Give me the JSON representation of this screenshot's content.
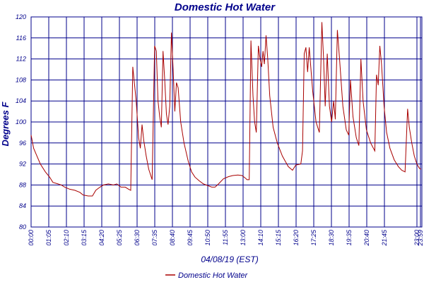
{
  "chart_data": {
    "type": "line",
    "title": "Domestic Hot Water",
    "xlabel": "04/08/19 (EST)",
    "ylabel": "Degrees F",
    "ylim": [
      80,
      120
    ],
    "yticks": [
      "80",
      "84",
      "88",
      "92",
      "96",
      "100",
      "104",
      "108",
      "112",
      "116",
      "120"
    ],
    "xticks": [
      "00:00",
      "01:05",
      "02:10",
      "03:15",
      "04:20",
      "05:25",
      "06:30",
      "07:35",
      "08:40",
      "09:45",
      "10:50",
      "11:55",
      "13:00",
      "14:10",
      "15:15",
      "16:20",
      "17:25",
      "18:30",
      "19:35",
      "20:40",
      "21:45",
      "23:00",
      "23:59"
    ],
    "grid": true,
    "legend_position": "bottom-center",
    "colors": {
      "series": "#A80000",
      "axis_text": "#00008B",
      "grid": "#00008B"
    },
    "series": [
      {
        "name": "Domestic Hot Water",
        "points": [
          [
            0.0,
            97.5
          ],
          [
            0.15,
            95
          ],
          [
            0.35,
            93.5
          ],
          [
            0.55,
            92
          ],
          [
            0.85,
            90.5
          ],
          [
            1.1,
            89.5
          ],
          [
            1.3,
            88.5
          ],
          [
            1.6,
            88.2
          ],
          [
            1.8,
            88.0
          ],
          [
            2.0,
            87.6
          ],
          [
            2.3,
            87.2
          ],
          [
            2.6,
            87.0
          ],
          [
            2.9,
            86.6
          ],
          [
            3.1,
            86.1
          ],
          [
            3.4,
            85.9
          ],
          [
            3.65,
            85.9
          ],
          [
            3.85,
            87.0
          ],
          [
            4.1,
            87.6
          ],
          [
            4.3,
            88.0
          ],
          [
            4.6,
            88.2
          ],
          [
            4.9,
            88.0
          ],
          [
            5.1,
            88.2
          ],
          [
            5.35,
            87.6
          ],
          [
            5.6,
            87.6
          ],
          [
            5.8,
            87.2
          ],
          [
            5.93,
            87.0
          ],
          [
            6.05,
            110.5
          ],
          [
            6.25,
            104
          ],
          [
            6.4,
            97
          ],
          [
            6.5,
            95
          ],
          [
            6.6,
            99.5
          ],
          [
            6.7,
            96.5
          ],
          [
            6.85,
            93.5
          ],
          [
            7.0,
            91
          ],
          [
            7.2,
            89
          ],
          [
            7.35,
            114.5
          ],
          [
            7.45,
            113.5
          ],
          [
            7.55,
            104
          ],
          [
            7.65,
            101
          ],
          [
            7.75,
            99
          ],
          [
            7.85,
            113.5
          ],
          [
            7.95,
            108
          ],
          [
            8.05,
            101.5
          ],
          [
            8.15,
            99.5
          ],
          [
            8.25,
            103
          ],
          [
            8.35,
            117
          ],
          [
            8.45,
            110
          ],
          [
            8.55,
            102
          ],
          [
            8.65,
            107.5
          ],
          [
            8.75,
            106.5
          ],
          [
            8.9,
            100
          ],
          [
            9.1,
            96
          ],
          [
            9.35,
            92.5
          ],
          [
            9.55,
            90.5
          ],
          [
            9.75,
            89.5
          ],
          [
            10.0,
            88.8
          ],
          [
            10.25,
            88.2
          ],
          [
            10.5,
            87.9
          ],
          [
            10.75,
            87.6
          ],
          [
            10.95,
            87.6
          ],
          [
            11.15,
            88.2
          ],
          [
            11.45,
            89.2
          ],
          [
            11.75,
            89.6
          ],
          [
            12.0,
            89.8
          ],
          [
            12.3,
            89.9
          ],
          [
            12.55,
            89.8
          ],
          [
            12.75,
            89.3
          ],
          [
            12.85,
            89.0
          ],
          [
            12.98,
            89.0
          ],
          [
            13.08,
            115.5
          ],
          [
            13.2,
            105
          ],
          [
            13.3,
            100
          ],
          [
            13.4,
            98
          ],
          [
            13.52,
            114.5
          ],
          [
            13.62,
            112
          ],
          [
            13.72,
            110.5
          ],
          [
            13.8,
            113.5
          ],
          [
            13.88,
            111
          ],
          [
            13.98,
            116.5
          ],
          [
            14.08,
            112
          ],
          [
            14.2,
            105
          ],
          [
            14.4,
            99
          ],
          [
            14.65,
            96
          ],
          [
            14.95,
            93.5
          ],
          [
            15.3,
            91.5
          ],
          [
            15.55,
            90.8
          ],
          [
            15.75,
            91.8
          ],
          [
            16.05,
            92.0
          ],
          [
            16.15,
            94.5
          ],
          [
            16.25,
            113
          ],
          [
            16.35,
            114.2
          ],
          [
            16.45,
            109.5
          ],
          [
            16.55,
            114.2
          ],
          [
            16.75,
            106
          ],
          [
            16.95,
            100
          ],
          [
            17.15,
            98
          ],
          [
            17.3,
            119
          ],
          [
            17.4,
            112
          ],
          [
            17.5,
            103
          ],
          [
            17.62,
            113
          ],
          [
            17.75,
            103
          ],
          [
            17.88,
            100
          ],
          [
            18.0,
            104
          ],
          [
            18.1,
            100.5
          ],
          [
            18.22,
            117.5
          ],
          [
            18.35,
            112
          ],
          [
            18.55,
            103
          ],
          [
            18.75,
            98.5
          ],
          [
            18.9,
            97.5
          ],
          [
            19.0,
            108
          ],
          [
            19.15,
            101
          ],
          [
            19.35,
            97
          ],
          [
            19.5,
            95.5
          ],
          [
            19.62,
            112
          ],
          [
            19.75,
            104
          ],
          [
            19.95,
            98.5
          ],
          [
            20.2,
            96
          ],
          [
            20.45,
            94.5
          ],
          [
            20.55,
            109
          ],
          [
            20.65,
            107
          ],
          [
            20.75,
            114.5
          ],
          [
            20.85,
            111
          ],
          [
            21.0,
            103
          ],
          [
            21.15,
            98
          ],
          [
            21.35,
            95
          ],
          [
            21.6,
            92.8
          ],
          [
            21.85,
            91.5
          ],
          [
            22.05,
            90.8
          ],
          [
            22.25,
            90.5
          ],
          [
            22.4,
            102.5
          ],
          [
            22.5,
            99
          ],
          [
            22.65,
            96
          ],
          [
            22.8,
            93.5
          ],
          [
            22.95,
            92
          ],
          [
            23.1,
            91.2
          ],
          [
            23.2,
            91.0
          ]
        ]
      }
    ]
  }
}
